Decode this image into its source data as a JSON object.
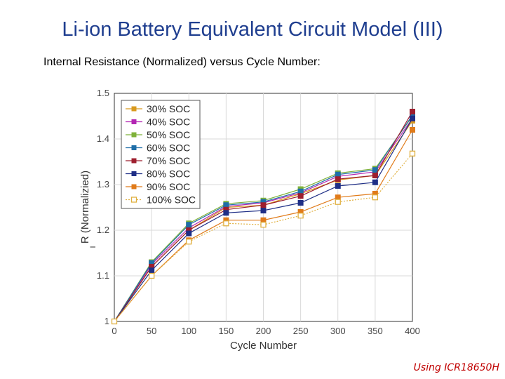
{
  "slide": {
    "title": "Li-ion Battery Equivalent Circuit Model (III)",
    "subtitle": "Internal Resistance (Normalized) versus Cycle Number:",
    "footnote": "Using ICR18650H"
  },
  "chart_data": {
    "type": "line",
    "xlabel": "Cycle Number",
    "ylabel": "R (Normalizied)",
    "ylabel_subscript": "I",
    "x": [
      0,
      50,
      100,
      150,
      200,
      250,
      300,
      350,
      400
    ],
    "xlim": [
      0,
      400
    ],
    "ylim": [
      1.0,
      1.5
    ],
    "xticks": [
      "0",
      "50",
      "100",
      "150",
      "200",
      "250",
      "300",
      "350",
      "400"
    ],
    "yticks": [
      "1",
      "1.1",
      "1.2",
      "1.3",
      "1.4",
      "1.5"
    ],
    "grid": true,
    "legend_position": "top-left",
    "series": [
      {
        "name": "30% SOC",
        "color": "#d99a1e",
        "marker": "square-filled",
        "dash": "solid",
        "values": [
          1.0,
          1.12,
          1.2,
          1.25,
          1.255,
          1.28,
          1.31,
          1.32,
          1.44
        ]
      },
      {
        "name": "40% SOC",
        "color": "#b326b3",
        "marker": "square-filled",
        "dash": "solid",
        "values": [
          1.0,
          1.125,
          1.205,
          1.252,
          1.26,
          1.282,
          1.318,
          1.328,
          1.445
        ]
      },
      {
        "name": "50% SOC",
        "color": "#7fb23a",
        "marker": "square-filled",
        "dash": "solid",
        "values": [
          1.0,
          1.13,
          1.215,
          1.258,
          1.265,
          1.29,
          1.325,
          1.335,
          1.45
        ]
      },
      {
        "name": "60% SOC",
        "color": "#1f6ea8",
        "marker": "square-filled",
        "dash": "solid",
        "values": [
          1.0,
          1.128,
          1.212,
          1.255,
          1.262,
          1.285,
          1.322,
          1.332,
          1.452
        ]
      },
      {
        "name": "70% SOC",
        "color": "#9e1f2e",
        "marker": "square-filled",
        "dash": "solid",
        "values": [
          1.0,
          1.12,
          1.2,
          1.245,
          1.255,
          1.275,
          1.312,
          1.32,
          1.46
        ]
      },
      {
        "name": "80% SOC",
        "color": "#1f2f86",
        "marker": "square-filled",
        "dash": "solid",
        "values": [
          1.0,
          1.112,
          1.193,
          1.238,
          1.243,
          1.26,
          1.297,
          1.305,
          1.445
        ]
      },
      {
        "name": "90% SOC",
        "color": "#e07b1a",
        "marker": "square-filled",
        "dash": "solid",
        "values": [
          1.0,
          1.1,
          1.178,
          1.222,
          1.222,
          1.24,
          1.272,
          1.28,
          1.42
        ]
      },
      {
        "name": "100% SOC",
        "color": "#e0b040",
        "marker": "square-open",
        "dash": "dotted",
        "values": [
          1.0,
          1.1,
          1.175,
          1.215,
          1.212,
          1.232,
          1.262,
          1.272,
          1.368
        ]
      }
    ]
  }
}
